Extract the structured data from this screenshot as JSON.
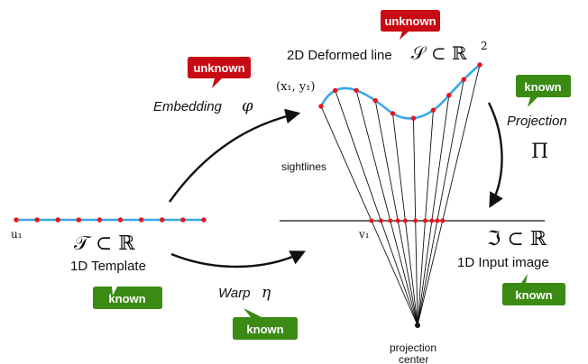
{
  "colors": {
    "curve": "#3aa6e8",
    "point": "#e8141c",
    "black": "#111111",
    "known_fill": "#3a8a14",
    "unknown_fill": "#c80a14",
    "bubble_text_known": "#ffffff",
    "bubble_text_unknown": "#ffffff"
  },
  "labels": {
    "deformed_line_prefix": "2D Deformed line",
    "deformed_line_math": "𝒮 ⊂ ℝ",
    "deformed_line_exp": "2",
    "embedding_word": "Embedding",
    "embedding_symbol": "φ",
    "point_x1y1": "(x₁, y₁)",
    "projection_word": "Projection",
    "projection_symbol": "Π",
    "sightlines": "sightlines",
    "template_math": "𝒯 ⊂ ℝ",
    "template_label": "1D Template",
    "u1": "u₁",
    "v1": "v₁",
    "input_math": "ℑ ⊂ ℝ",
    "input_label": "1D Input image",
    "warp_word": "Warp",
    "warp_symbol": "η",
    "projection_center": "projection\ncenter",
    "projection_center_line1": "projection",
    "projection_center_line2": "center"
  },
  "bubbles": {
    "unknown_top": "unknown",
    "unknown_left": "unknown",
    "known_projection": "known",
    "known_template": "known",
    "known_warp": "known",
    "known_input": "known"
  },
  "icons": {
    "bubble_shape": "speech-bubble-icon",
    "arrow_shape": "curved-arrow-icon"
  }
}
